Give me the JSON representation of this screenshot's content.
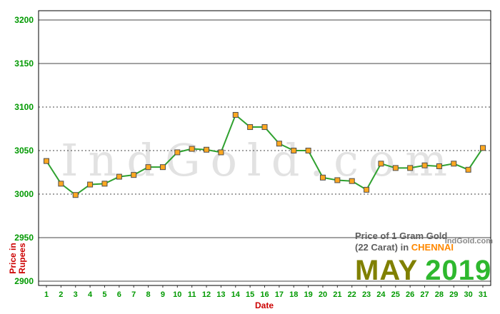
{
  "chart_data": {
    "type": "line",
    "title": "Price of 1 Gram Gold (22 Carat) in CHENNAI - MAY 2019",
    "xlabel": "Date",
    "ylabel": "Price in Rupees",
    "ylim": [
      2900,
      3200
    ],
    "yticks": [
      2900,
      2950,
      3000,
      3050,
      3100,
      3150,
      3200
    ],
    "solid_gridlines": [
      2900,
      2950,
      3150,
      3200
    ],
    "grid": "horizontal",
    "legend_position": "none",
    "categories": [
      1,
      2,
      3,
      4,
      5,
      6,
      7,
      8,
      9,
      10,
      11,
      12,
      13,
      14,
      15,
      16,
      17,
      18,
      19,
      20,
      21,
      22,
      23,
      24,
      25,
      26,
      27,
      28,
      29,
      30,
      31
    ],
    "series": [
      {
        "name": "1 Gram Gold Price (22 Carat), Chennai",
        "values": [
          3038,
          3012,
          2999,
          3011,
          3012,
          3020,
          3022,
          3031,
          3031,
          3048,
          3052,
          3051,
          3048,
          3091,
          3077,
          3077,
          3058,
          3050,
          3050,
          3019,
          3016,
          3015,
          3005,
          3035,
          3030,
          3030,
          3033,
          3032,
          3035,
          3028,
          3053
        ]
      }
    ],
    "line_color": "#2fa12f",
    "marker_fill": "#ffa820",
    "marker_stroke": "#4d4d4d"
  },
  "labels": {
    "watermark": "IndGold.com",
    "brand_small": "IndGold.com",
    "caption_line1": "Price of 1 Gram Gold",
    "caption_line2_prefix": "(22 Carat) in",
    "caption_city": "CHENNAI",
    "month": "MAY",
    "year": "2019"
  },
  "colors": {
    "tick_label_green": "#009900",
    "axis_title_red": "#cc0000",
    "city_orange": "#ff8800",
    "month_olive": "#808000",
    "year_green": "#2eb82e",
    "watermark_gray": "#e2e2e2",
    "line_green": "#2fa12f",
    "marker_orange": "#ffa820"
  }
}
